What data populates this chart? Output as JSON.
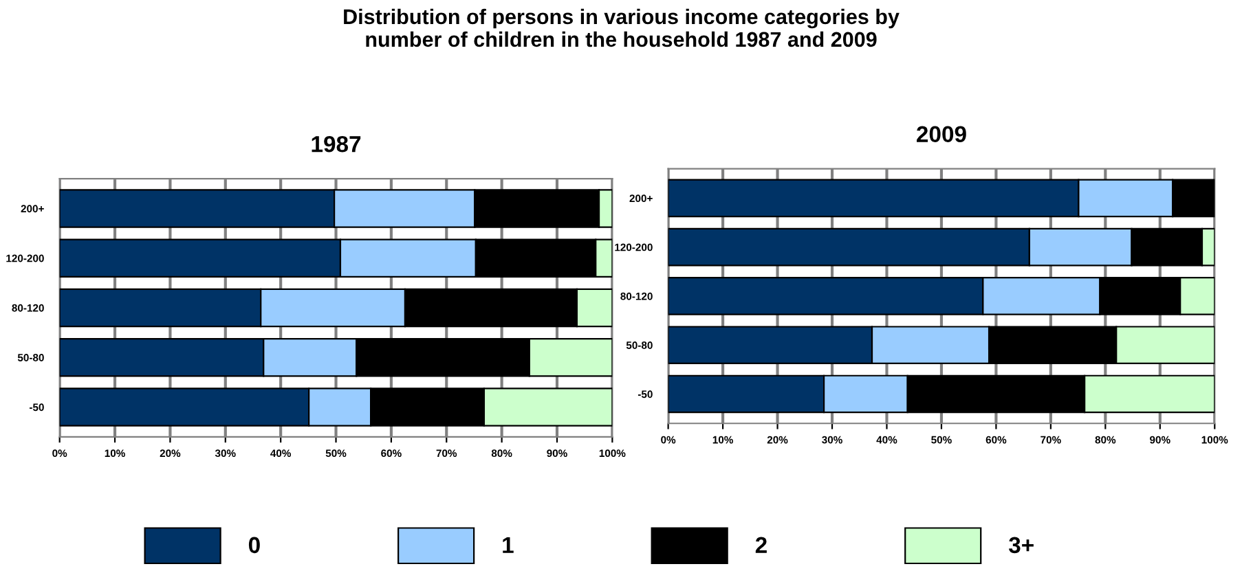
{
  "chart_data": [
    {
      "type": "bar",
      "orientation": "horizontal",
      "stacked": true,
      "title": "Distribution of persons in various income categories by\nnumber of children in the household 1987 and 2009",
      "subtitle": "1987",
      "categories": [
        "200+",
        "120-200",
        "80-120",
        "50-80",
        "-50"
      ],
      "xlim": [
        0,
        100
      ],
      "xticks": [
        {
          "value": 0,
          "label": "0%"
        },
        {
          "value": 10,
          "label": "10%"
        },
        {
          "value": 20,
          "label": "20%"
        },
        {
          "value": 30,
          "label": "30%"
        },
        {
          "value": 40,
          "label": "40%"
        },
        {
          "value": 50,
          "label": "50%"
        },
        {
          "value": 60,
          "label": "60%"
        },
        {
          "value": 70,
          "label": "70%"
        },
        {
          "value": 80,
          "label": "80%"
        },
        {
          "value": 90,
          "label": "90%"
        },
        {
          "value": 100,
          "label": "100%"
        }
      ],
      "grid": "x",
      "legend": "bottom",
      "series": [
        {
          "name": "0",
          "color": "#003366",
          "values": [
            49.7,
            50.8,
            36.4,
            36.9,
            45.1
          ]
        },
        {
          "name": "1",
          "color": "#99ccff",
          "values": [
            25.4,
            24.5,
            26.1,
            16.8,
            11.2
          ]
        },
        {
          "name": "2",
          "color": "#000000",
          "values": [
            22.5,
            21.7,
            31.1,
            31.3,
            20.5
          ]
        },
        {
          "name": "3+",
          "color": "#ccffcc",
          "values": [
            2.4,
            3.0,
            6.4,
            15.0,
            23.2
          ]
        }
      ]
    },
    {
      "type": "bar",
      "orientation": "horizontal",
      "stacked": true,
      "title": "2009",
      "categories": [
        "200+",
        "120-200",
        "80-120",
        "50-80",
        "-50"
      ],
      "xlim": [
        0,
        100
      ],
      "xticks": [
        {
          "value": 0,
          "label": "0%"
        },
        {
          "value": 10,
          "label": "10%"
        },
        {
          "value": 20,
          "label": "20%"
        },
        {
          "value": 30,
          "label": "30%"
        },
        {
          "value": 40,
          "label": "40%"
        },
        {
          "value": 50,
          "label": "50%"
        },
        {
          "value": 60,
          "label": "60%"
        },
        {
          "value": 70,
          "label": "70%"
        },
        {
          "value": 80,
          "label": "80%"
        },
        {
          "value": 90,
          "label": "90%"
        },
        {
          "value": 100,
          "label": "100%"
        }
      ],
      "grid": "x",
      "series": [
        {
          "color": "#003366",
          "values": [
            75.1,
            66.1,
            57.6,
            37.3,
            28.5
          ]
        },
        {
          "color": "#99ccff",
          "values": [
            17.2,
            18.7,
            21.4,
            21.4,
            15.3
          ]
        },
        {
          "color": "#000000",
          "values": [
            7.7,
            12.9,
            14.7,
            23.3,
            32.4
          ]
        },
        {
          "color": "#ccffcc",
          "values": [
            null,
            2.3,
            6.3,
            18.0,
            23.8
          ]
        }
      ]
    }
  ]
}
